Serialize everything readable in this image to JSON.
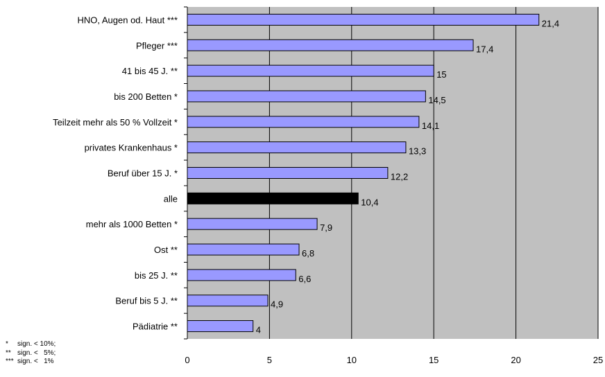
{
  "chart_data": {
    "type": "bar",
    "orientation": "horizontal",
    "categories": [
      "HNO, Augen od. Haut ***",
      "Pfleger ***",
      "41 bis 45 J. **",
      "bis 200 Betten *",
      "Teilzeit mehr als 50 % Vollzeit *",
      "privates Krankenhaus *",
      "Beruf über 15 J. *",
      "alle",
      "mehr als 1000 Betten *",
      "Ost **",
      "bis 25 J. **",
      "Beruf bis 5 J. **",
      "Pädiatrie **"
    ],
    "values": [
      21.4,
      17.4,
      15,
      14.5,
      14.1,
      13.3,
      12.2,
      10.4,
      7.9,
      6.8,
      6.6,
      4.9,
      4
    ],
    "value_labels": [
      "21,4",
      "17,4",
      "15",
      "14,5",
      "14,1",
      "13,3",
      "12,2",
      "10,4",
      "7,9",
      "6,8",
      "6,6",
      "4,9",
      "4"
    ],
    "highlight_category": "alle",
    "xlim": [
      0,
      25
    ],
    "xticks": [
      0,
      5,
      10,
      15,
      20,
      25
    ],
    "xtick_labels": [
      "0",
      "5",
      "10",
      "15",
      "20",
      "25"
    ],
    "grid": "vertical",
    "title": "",
    "xlabel": "",
    "ylabel": "",
    "colors": {
      "bar": "#9999ff",
      "highlight": "#000000",
      "plot_background": "#c0c0c0",
      "gridline": "#000000",
      "bar_border": "#000000"
    }
  },
  "legend": [
    {
      "symbol": "*",
      "text": "sign. < 10%;"
    },
    {
      "symbol": "**",
      "text": "sign. <   5%;"
    },
    {
      "symbol": "***",
      "text": "sign. <   1%"
    }
  ]
}
